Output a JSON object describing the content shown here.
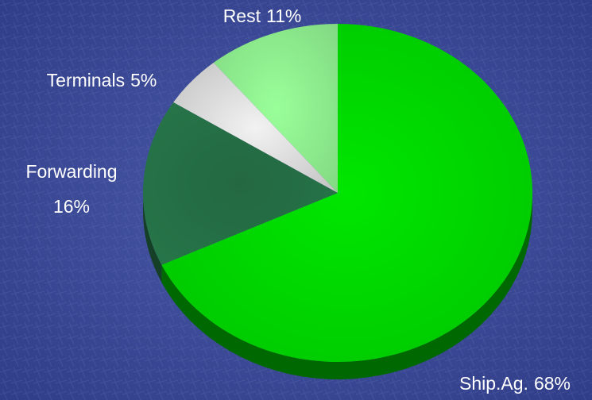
{
  "chart_data": {
    "type": "pie",
    "categories": [
      "Ship.Ag.",
      "Forwarding",
      "Terminals",
      "Rest"
    ],
    "values": [
      68,
      16,
      5,
      11
    ],
    "value_labels": [
      "68%",
      "16%",
      "5%",
      "11%"
    ],
    "colors": [
      "#00e600",
      "#2e8b57",
      "#f2f2f2",
      "#99ff99"
    ]
  }
}
